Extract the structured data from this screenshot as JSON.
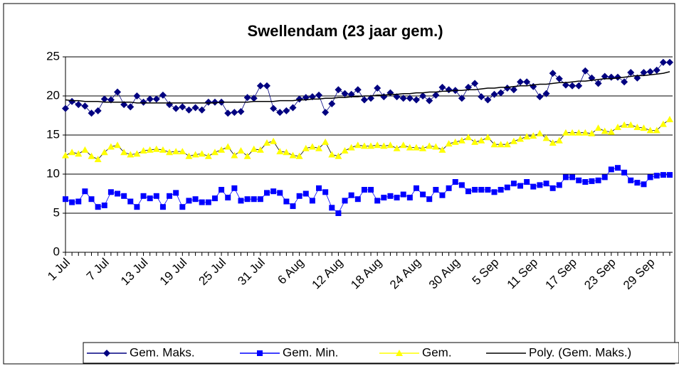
{
  "chart_data": {
    "type": "line",
    "title": "Swellendam (23 jaar gem.)",
    "categories": [
      "1 Jul",
      null,
      null,
      null,
      null,
      null,
      "7 Jul",
      null,
      null,
      null,
      null,
      null,
      "13 Jul",
      null,
      null,
      null,
      null,
      null,
      "19 Jul",
      null,
      null,
      null,
      null,
      null,
      "25 Jul",
      null,
      null,
      null,
      null,
      null,
      "31 Jul",
      null,
      null,
      null,
      null,
      null,
      "6 Aug",
      null,
      null,
      null,
      null,
      null,
      "12 Aug",
      null,
      null,
      null,
      null,
      null,
      "18 Aug",
      null,
      null,
      null,
      null,
      null,
      "24 Aug",
      null,
      null,
      null,
      null,
      null,
      "30 Aug",
      null,
      null,
      null,
      null,
      null,
      "5 Sep",
      null,
      null,
      null,
      null,
      null,
      "11 Sep",
      null,
      null,
      null,
      null,
      null,
      "17 Sep",
      null,
      null,
      null,
      null,
      null,
      "23 Sep",
      null,
      null,
      null,
      null,
      null,
      "29 Sep",
      null,
      null,
      null
    ],
    "ylim": [
      0,
      25
    ],
    "yticks": [
      0,
      5,
      10,
      15,
      20,
      25
    ],
    "grid": true,
    "series": [
      {
        "name": "Gem. Maks.",
        "color": "#000080",
        "marker": "diamond",
        "values": [
          18.4,
          19.3,
          18.9,
          18.7,
          17.8,
          18.1,
          19.6,
          19.5,
          20.5,
          18.9,
          18.6,
          20.0,
          19.2,
          19.6,
          19.6,
          20.1,
          18.9,
          18.4,
          18.6,
          18.2,
          18.5,
          18.2,
          19.2,
          19.2,
          19.2,
          17.8,
          17.9,
          18.0,
          19.8,
          19.7,
          21.3,
          21.3,
          18.4,
          17.9,
          18.1,
          18.5,
          19.6,
          19.8,
          19.9,
          20.1,
          17.9,
          19.0,
          20.8,
          20.3,
          20.2,
          20.8,
          19.5,
          19.7,
          21.0,
          19.9,
          20.4,
          19.9,
          19.7,
          19.7,
          19.5,
          20.0,
          19.4,
          20.1,
          21.1,
          20.8,
          20.7,
          19.7,
          21.1,
          21.6,
          19.9,
          19.5,
          20.2,
          20.4,
          21.0,
          20.8,
          21.8,
          21.8,
          21.2,
          19.9,
          20.3,
          22.9,
          22.2,
          21.4,
          21.3,
          21.3,
          23.2,
          22.3,
          21.6,
          22.5,
          22.4,
          22.4,
          21.8,
          23.0,
          22.3,
          23.0,
          23.1,
          23.3,
          24.3,
          24.3
        ]
      },
      {
        "name": "Gem. Min.",
        "color": "#0000ff",
        "marker": "square",
        "values": [
          6.8,
          6.4,
          6.5,
          7.8,
          6.8,
          5.8,
          6.0,
          7.7,
          7.5,
          7.2,
          6.5,
          5.8,
          7.2,
          6.9,
          7.2,
          5.8,
          7.2,
          7.6,
          5.8,
          6.6,
          6.8,
          6.4,
          6.4,
          6.9,
          8.0,
          7.0,
          8.2,
          6.6,
          6.8,
          6.8,
          6.8,
          7.6,
          7.8,
          7.6,
          6.5,
          5.9,
          7.2,
          7.5,
          6.6,
          8.2,
          7.7,
          5.7,
          5.0,
          6.6,
          7.3,
          6.8,
          8.0,
          8.0,
          6.6,
          7.0,
          7.2,
          7.0,
          7.4,
          7.0,
          8.2,
          7.4,
          6.8,
          8.0,
          7.3,
          8.2,
          9.0,
          8.6,
          7.8,
          8.0,
          8.0,
          8.0,
          7.7,
          8.0,
          8.3,
          8.8,
          8.5,
          9.0,
          8.4,
          8.6,
          8.8,
          8.2,
          8.6,
          9.6,
          9.6,
          9.2,
          9.0,
          9.1,
          9.2,
          9.6,
          10.6,
          10.8,
          10.2,
          9.2,
          8.9,
          8.7,
          9.6,
          9.8,
          9.9,
          9.9
        ]
      },
      {
        "name": "Gem.",
        "color": "#ffff00",
        "marker": "triangle",
        "values": [
          12.4,
          12.8,
          12.6,
          13.1,
          12.3,
          11.9,
          12.8,
          13.5,
          13.7,
          12.8,
          12.5,
          12.6,
          13.0,
          13.1,
          13.2,
          13.1,
          12.8,
          12.9,
          12.9,
          12.3,
          12.5,
          12.6,
          12.3,
          12.8,
          13.1,
          13.5,
          12.4,
          13.0,
          12.3,
          13.2,
          13.1,
          14.0,
          14.2,
          12.9,
          12.8,
          12.4,
          12.3,
          13.3,
          13.5,
          13.3,
          14.1,
          12.5,
          12.3,
          13.0,
          13.4,
          13.7,
          13.6,
          13.6,
          13.7,
          13.6,
          13.7,
          13.3,
          13.7,
          13.4,
          13.4,
          13.3,
          13.6,
          13.5,
          13.1,
          13.9,
          14.1,
          14.3,
          14.7,
          14.1,
          14.3,
          14.7,
          13.8,
          13.8,
          13.8,
          14.2,
          14.5,
          14.8,
          14.9,
          15.2,
          14.6,
          14.0,
          14.3,
          15.3,
          15.3,
          15.3,
          15.3,
          15.2,
          15.9,
          15.5,
          15.4,
          16.0,
          16.3,
          16.3,
          16.0,
          15.9,
          15.6,
          15.6,
          16.4,
          17.0
        ]
      },
      {
        "name": "Poly. (Gem. Maks.)",
        "color": "#000000",
        "marker": "none",
        "values": [
          19.5,
          19.4,
          19.4,
          19.3,
          19.3,
          19.3,
          19.2,
          19.2,
          19.2,
          19.2,
          19.2,
          19.1,
          19.1,
          19.1,
          19.1,
          19.1,
          19.1,
          19.1,
          19.1,
          19.1,
          19.1,
          19.1,
          19.1,
          19.1,
          19.2,
          19.2,
          19.2,
          19.2,
          19.2,
          19.3,
          19.3,
          19.3,
          19.3,
          19.4,
          19.4,
          19.4,
          19.5,
          19.5,
          19.6,
          19.6,
          19.7,
          19.7,
          19.8,
          19.8,
          19.9,
          19.9,
          20.0,
          20.0,
          20.1,
          20.1,
          20.2,
          20.2,
          20.3,
          20.3,
          20.4,
          20.4,
          20.5,
          20.5,
          20.6,
          20.6,
          20.7,
          20.7,
          20.8,
          20.8,
          20.9,
          21.0,
          21.0,
          21.1,
          21.1,
          21.2,
          21.3,
          21.3,
          21.4,
          21.5,
          21.5,
          21.6,
          21.7,
          21.7,
          21.8,
          21.9,
          21.9,
          22.0,
          22.1,
          22.2,
          22.2,
          22.3,
          22.4,
          22.5,
          22.6,
          22.6,
          22.7,
          22.8,
          22.9,
          23.1
        ]
      }
    ]
  }
}
